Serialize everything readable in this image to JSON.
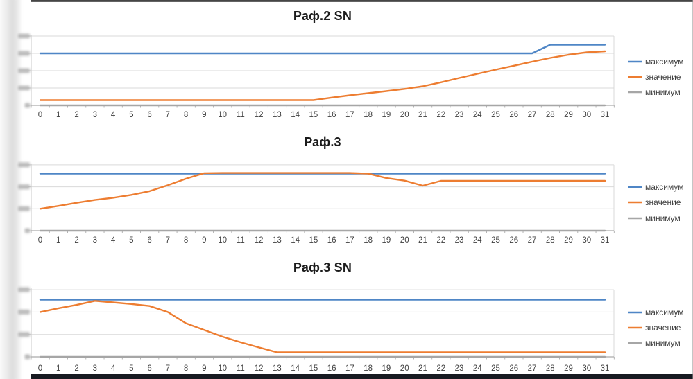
{
  "window": {
    "left_band_blurred": true,
    "y_axis_tick_labels": "blurred-unreadable"
  },
  "colors": {
    "max_line": "#4F86C6",
    "value_line": "#ED7D31",
    "min_line": "#A6A6A6",
    "gridline": "#D9D9D9",
    "axis_line": "#ABABAB",
    "tick_text": "#3F3F3F",
    "title_text": "#1C1C1C",
    "blur_blob": "#B5B5B5"
  },
  "legend_labels": [
    "максимум",
    "значение",
    "минимум"
  ],
  "chart_data": [
    {
      "type": "line",
      "title": "Раф.2 SN",
      "legend_position": "right",
      "grid": true,
      "ylim": [
        0,
        4
      ],
      "y_tick_labels": "blurred",
      "categories": [
        "0",
        "1",
        "2",
        "3",
        "4",
        "5",
        "6",
        "7",
        "8",
        "9",
        "10",
        "11",
        "12",
        "13",
        "14",
        "15",
        "16",
        "17",
        "18",
        "19",
        "20",
        "21",
        "22",
        "23",
        "24",
        "25",
        "26",
        "27",
        "28",
        "29",
        "30",
        "31"
      ],
      "series": [
        {
          "name": "максимум",
          "color": "#4F86C6",
          "values": [
            3,
            3,
            3,
            3,
            3,
            3,
            3,
            3,
            3,
            3,
            3,
            3,
            3,
            3,
            3,
            3,
            3,
            3,
            3,
            3,
            3,
            3,
            3,
            3,
            3,
            3,
            3,
            3,
            3.5,
            3.5,
            3.5,
            3.5
          ]
        },
        {
          "name": "значение",
          "color": "#ED7D31",
          "values": [
            0.3,
            0.3,
            0.3,
            0.3,
            0.3,
            0.3,
            0.3,
            0.3,
            0.3,
            0.3,
            0.3,
            0.3,
            0.3,
            0.3,
            0.3,
            0.3,
            0.45,
            0.58,
            0.7,
            0.82,
            0.95,
            1.1,
            1.33,
            1.58,
            1.82,
            2.06,
            2.29,
            2.52,
            2.74,
            2.92,
            3.06,
            3.12
          ]
        },
        {
          "name": "минимум",
          "color": "#A6A6A6",
          "values": [
            0,
            0,
            0,
            0,
            0,
            0,
            0,
            0,
            0,
            0,
            0,
            0,
            0,
            0,
            0,
            0,
            0,
            0,
            0,
            0,
            0,
            0,
            0,
            0,
            0,
            0,
            0,
            0,
            0,
            0,
            0,
            0
          ]
        }
      ]
    },
    {
      "type": "line",
      "title": "Раф.3",
      "legend_position": "right",
      "grid": true,
      "ylim": [
        0,
        3
      ],
      "y_tick_labels": "blurred",
      "categories": [
        "0",
        "1",
        "2",
        "3",
        "4",
        "5",
        "6",
        "7",
        "8",
        "9",
        "10",
        "11",
        "12",
        "13",
        "14",
        "15",
        "16",
        "17",
        "18",
        "19",
        "20",
        "21",
        "22",
        "23",
        "24",
        "25",
        "26",
        "27",
        "28",
        "29",
        "30",
        "31"
      ],
      "series": [
        {
          "name": "максимум",
          "color": "#4F86C6",
          "values": [
            2.6,
            2.6,
            2.6,
            2.6,
            2.6,
            2.6,
            2.6,
            2.6,
            2.6,
            2.6,
            2.6,
            2.6,
            2.6,
            2.6,
            2.6,
            2.6,
            2.6,
            2.6,
            2.6,
            2.6,
            2.6,
            2.6,
            2.6,
            2.6,
            2.6,
            2.6,
            2.6,
            2.6,
            2.6,
            2.6,
            2.6,
            2.6
          ]
        },
        {
          "name": "значение",
          "color": "#ED7D31",
          "values": [
            1,
            1.13,
            1.27,
            1.4,
            1.5,
            1.63,
            1.8,
            2.07,
            2.37,
            2.62,
            2.63,
            2.63,
            2.63,
            2.63,
            2.63,
            2.63,
            2.63,
            2.63,
            2.6,
            2.4,
            2.28,
            2.05,
            2.27,
            2.27,
            2.27,
            2.27,
            2.27,
            2.27,
            2.27,
            2.27,
            2.27,
            2.27
          ]
        },
        {
          "name": "минимум",
          "color": "#A6A6A6",
          "values": [
            0,
            0,
            0,
            0,
            0,
            0,
            0,
            0,
            0,
            0,
            0,
            0,
            0,
            0,
            0,
            0,
            0,
            0,
            0,
            0,
            0,
            0,
            0,
            0,
            0,
            0,
            0,
            0,
            0,
            0,
            0,
            0
          ]
        }
      ]
    },
    {
      "type": "line",
      "title": "Раф.3 SN",
      "legend_position": "right",
      "grid": true,
      "ylim": [
        0,
        3
      ],
      "y_tick_labels": "blurred",
      "categories": [
        "0",
        "1",
        "2",
        "3",
        "4",
        "5",
        "6",
        "7",
        "8",
        "9",
        "10",
        "11",
        "12",
        "13",
        "14",
        "15",
        "16",
        "17",
        "18",
        "19",
        "20",
        "21",
        "22",
        "23",
        "24",
        "25",
        "26",
        "27",
        "28",
        "29",
        "30",
        "31"
      ],
      "series": [
        {
          "name": "максимум",
          "color": "#4F86C6",
          "values": [
            2.55,
            2.55,
            2.55,
            2.55,
            2.55,
            2.55,
            2.55,
            2.55,
            2.55,
            2.55,
            2.55,
            2.55,
            2.55,
            2.55,
            2.55,
            2.55,
            2.55,
            2.55,
            2.55,
            2.55,
            2.55,
            2.55,
            2.55,
            2.55,
            2.55,
            2.55,
            2.55,
            2.55,
            2.55,
            2.55,
            2.55,
            2.55
          ]
        },
        {
          "name": "значение",
          "color": "#ED7D31",
          "values": [
            2,
            2.17,
            2.32,
            2.5,
            2.43,
            2.36,
            2.27,
            2,
            1.5,
            1.2,
            0.9,
            0.65,
            0.42,
            0.2,
            0.2,
            0.2,
            0.2,
            0.2,
            0.2,
            0.2,
            0.2,
            0.2,
            0.2,
            0.2,
            0.2,
            0.2,
            0.2,
            0.2,
            0.2,
            0.2,
            0.2,
            0.2
          ]
        },
        {
          "name": "минимум",
          "color": "#A6A6A6",
          "values": [
            0,
            0,
            0,
            0,
            0,
            0,
            0,
            0,
            0,
            0,
            0,
            0,
            0,
            0,
            0,
            0,
            0,
            0,
            0,
            0,
            0,
            0,
            0,
            0,
            0,
            0,
            0,
            0,
            0,
            0,
            0,
            0
          ]
        }
      ]
    }
  ]
}
